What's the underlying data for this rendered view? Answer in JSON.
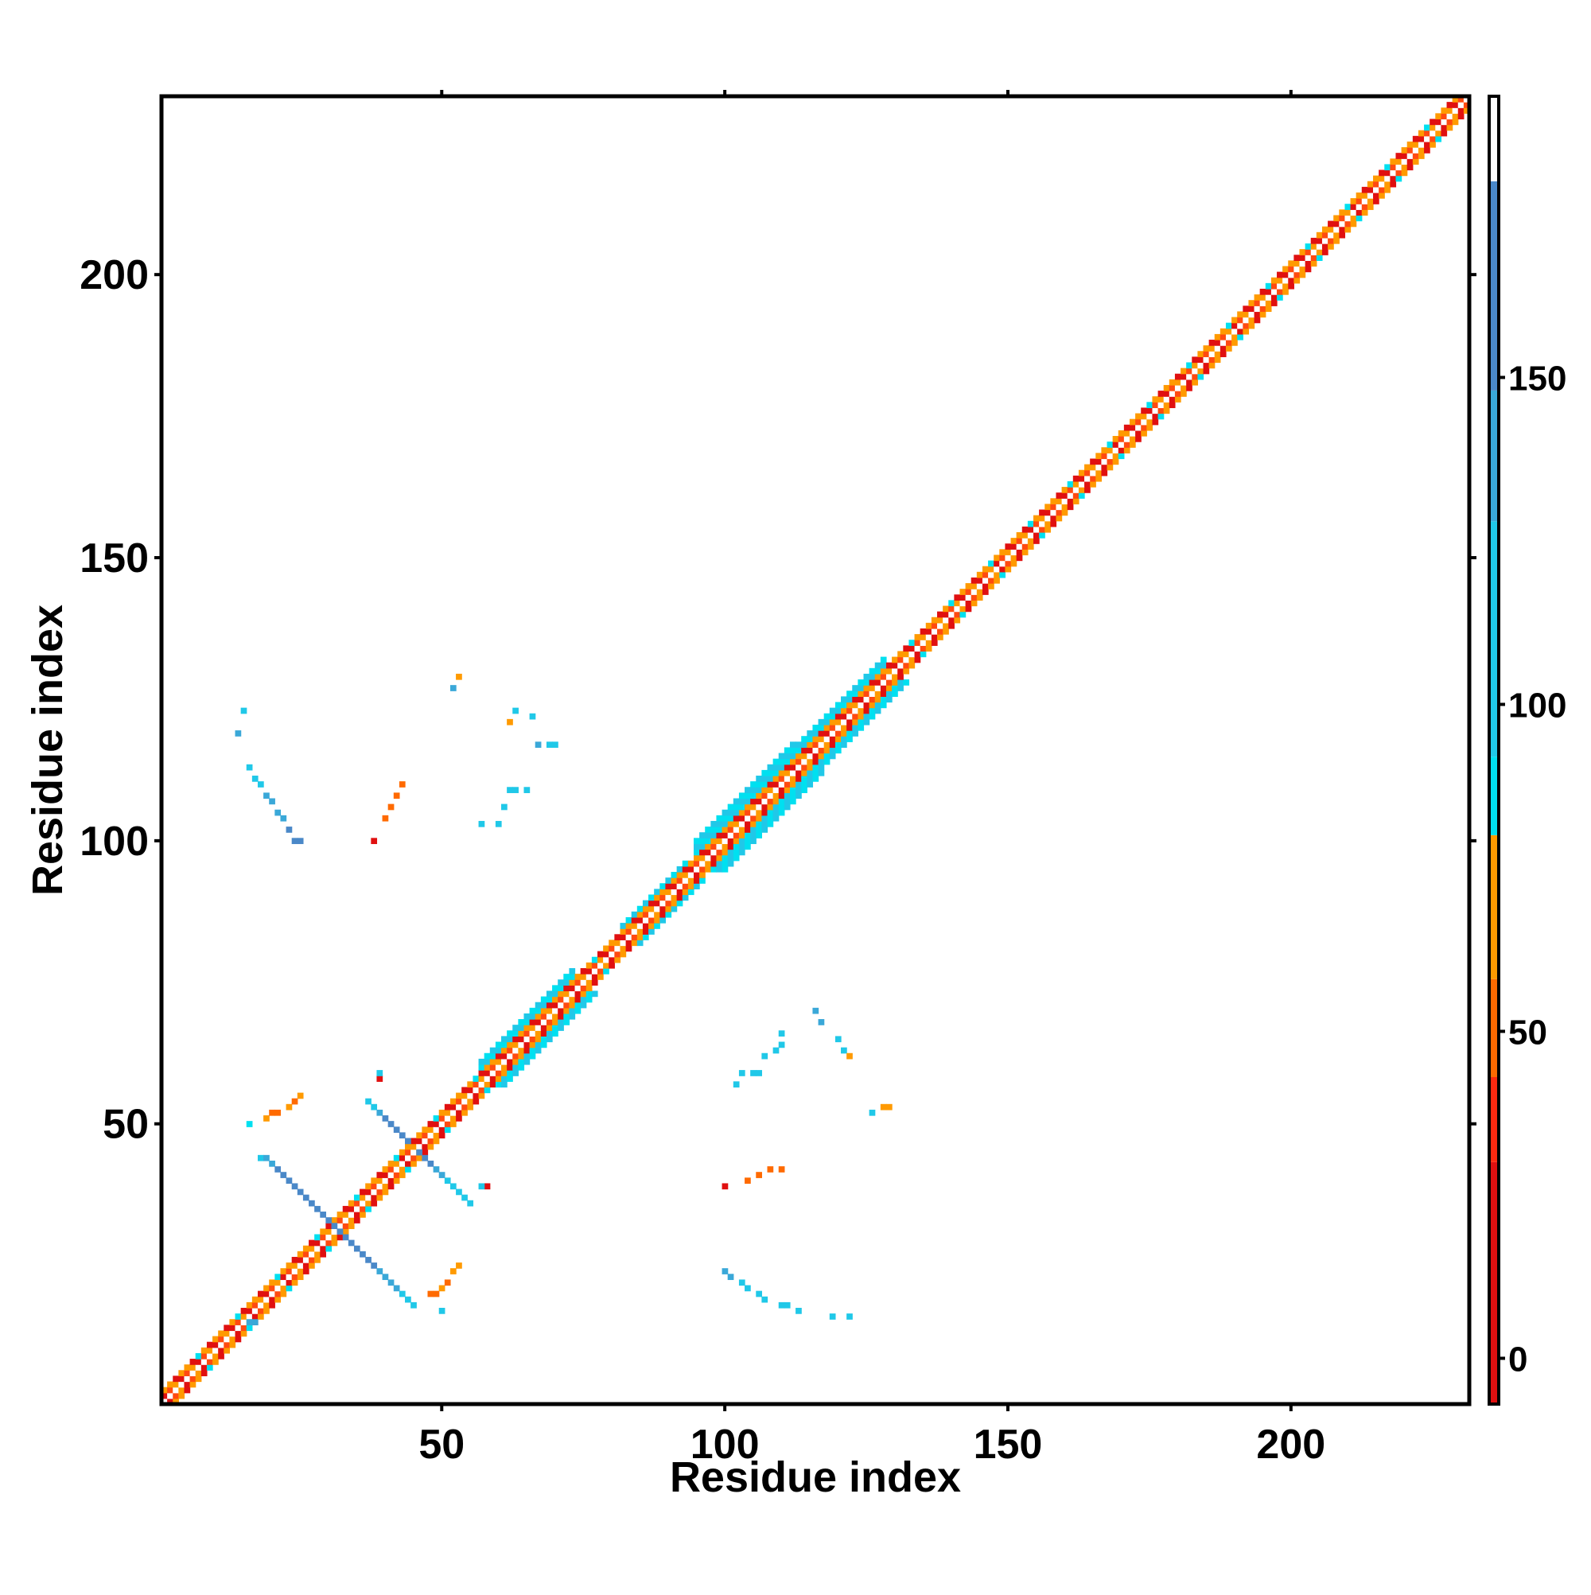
{
  "chart_data": {
    "type": "heatmap",
    "title": "",
    "xlabel": "Residue index",
    "ylabel": "Residue index",
    "xlim": [
      1,
      231
    ],
    "ylim": [
      1,
      231
    ],
    "x_ticks": [
      50,
      100,
      150,
      200
    ],
    "y_ticks": [
      50,
      100,
      150,
      200
    ],
    "colorbar": {
      "ticks": [
        0,
        50,
        100,
        150
      ],
      "range": [
        -7,
        193
      ],
      "bands": [
        {
          "from": -7,
          "to": 30,
          "color": "#e01010"
        },
        {
          "from": 30,
          "to": 43,
          "color": "#ff2a10"
        },
        {
          "from": 43,
          "to": 58,
          "color": "#ff6a00"
        },
        {
          "from": 58,
          "to": 80,
          "color": "#ff9a00"
        },
        {
          "from": 80,
          "to": 92,
          "color": "#00e0f0"
        },
        {
          "from": 92,
          "to": 128,
          "color": "#20c8e8"
        },
        {
          "from": 128,
          "to": 148,
          "color": "#3aa8d8"
        },
        {
          "from": 148,
          "to": 180,
          "color": "#4a88c8"
        },
        {
          "from": 180,
          "to": 193,
          "color": "#ffffff"
        }
      ]
    },
    "palette": {
      "red": "#e01010",
      "orange_red": "#ff4a10",
      "orange": "#ff9a00",
      "cyan": "#00e0f0",
      "sky": "#20c8e8",
      "steel": "#4a88c8",
      "white": "#ffffff"
    },
    "diagonal": {
      "from": 1,
      "to": 231,
      "band_width": 4
    },
    "diagonal_wide_segments": [
      {
        "from": 57,
        "to": 73,
        "half_width": 4
      },
      {
        "from": 82,
        "to": 93,
        "half_width": 3
      },
      {
        "from": 95,
        "to": 112,
        "half_width": 5
      },
      {
        "from": 113,
        "to": 128,
        "half_width": 4
      },
      {
        "from": 133,
        "to": 147,
        "half_width": 2
      },
      {
        "from": 152,
        "to": 162,
        "half_width": 2
      },
      {
        "from": 173,
        "to": 183,
        "half_width": 2
      },
      {
        "from": 185,
        "to": 193,
        "half_width": 2
      },
      {
        "from": 197,
        "to": 205,
        "half_width": 2
      },
      {
        "from": 208,
        "to": 215,
        "half_width": 2
      }
    ],
    "cells": [
      {
        "x": 16,
        "y": 15,
        "v": 130
      },
      {
        "x": 17,
        "y": 15,
        "v": 130
      },
      {
        "x": 18,
        "y": 44,
        "v": 95
      },
      {
        "x": 19,
        "y": 44,
        "v": 130
      },
      {
        "x": 20,
        "y": 43,
        "v": 140
      },
      {
        "x": 21,
        "y": 42,
        "v": 150
      },
      {
        "x": 22,
        "y": 41,
        "v": 150
      },
      {
        "x": 23,
        "y": 40,
        "v": 150
      },
      {
        "x": 24,
        "y": 39,
        "v": 155
      },
      {
        "x": 25,
        "y": 38,
        "v": 155
      },
      {
        "x": 26,
        "y": 37,
        "v": 155
      },
      {
        "x": 27,
        "y": 36,
        "v": 155
      },
      {
        "x": 28,
        "y": 35,
        "v": 155
      },
      {
        "x": 29,
        "y": 34,
        "v": 155
      },
      {
        "x": 30,
        "y": 33,
        "v": 150
      },
      {
        "x": 31,
        "y": 32,
        "v": 150
      },
      {
        "x": 33,
        "y": 30,
        "v": 150
      },
      {
        "x": 34,
        "y": 29,
        "v": 150
      },
      {
        "x": 35,
        "y": 28,
        "v": 150
      },
      {
        "x": 36,
        "y": 27,
        "v": 150
      },
      {
        "x": 37,
        "y": 26,
        "v": 150
      },
      {
        "x": 38,
        "y": 25,
        "v": 150
      },
      {
        "x": 39,
        "y": 24,
        "v": 140
      },
      {
        "x": 40,
        "y": 23,
        "v": 140
      },
      {
        "x": 41,
        "y": 22,
        "v": 130
      },
      {
        "x": 42,
        "y": 21,
        "v": 130
      },
      {
        "x": 43,
        "y": 20,
        "v": 120
      },
      {
        "x": 44,
        "y": 19,
        "v": 100
      },
      {
        "x": 45,
        "y": 18,
        "v": 95
      },
      {
        "x": 32,
        "y": 31,
        "v": 150
      },
      {
        "x": 37,
        "y": 54,
        "v": 95
      },
      {
        "x": 38,
        "y": 53,
        "v": 120
      },
      {
        "x": 39,
        "y": 52,
        "v": 130
      },
      {
        "x": 40,
        "y": 51,
        "v": 150
      },
      {
        "x": 41,
        "y": 50,
        "v": 155
      },
      {
        "x": 42,
        "y": 49,
        "v": 155
      },
      {
        "x": 43,
        "y": 48,
        "v": 155
      },
      {
        "x": 44,
        "y": 47,
        "v": 150
      },
      {
        "x": 46,
        "y": 45,
        "v": 150
      },
      {
        "x": 47,
        "y": 44,
        "v": 155
      },
      {
        "x": 48,
        "y": 43,
        "v": 150
      },
      {
        "x": 49,
        "y": 42,
        "v": 140
      },
      {
        "x": 50,
        "y": 41,
        "v": 130
      },
      {
        "x": 51,
        "y": 40,
        "v": 120
      },
      {
        "x": 52,
        "y": 39,
        "v": 110
      },
      {
        "x": 53,
        "y": 38,
        "v": 100
      },
      {
        "x": 54,
        "y": 37,
        "v": 95
      },
      {
        "x": 55,
        "y": 36,
        "v": 95
      },
      {
        "x": 58,
        "y": 39,
        "v": 10
      },
      {
        "x": 57,
        "y": 39,
        "v": 95
      },
      {
        "x": 39,
        "y": 58,
        "v": 10
      },
      {
        "x": 39,
        "y": 59,
        "v": 95
      },
      {
        "x": 16,
        "y": 50,
        "v": 90
      },
      {
        "x": 19,
        "y": 51,
        "v": 60
      },
      {
        "x": 20,
        "y": 52,
        "v": 45
      },
      {
        "x": 21,
        "y": 52,
        "v": 45
      },
      {
        "x": 23,
        "y": 53,
        "v": 60
      },
      {
        "x": 24,
        "y": 54,
        "v": 45
      },
      {
        "x": 25,
        "y": 55,
        "v": 70
      },
      {
        "x": 48,
        "y": 20,
        "v": 45
      },
      {
        "x": 49,
        "y": 20,
        "v": 45
      },
      {
        "x": 50,
        "y": 21,
        "v": 60
      },
      {
        "x": 51,
        "y": 22,
        "v": 45
      },
      {
        "x": 52,
        "y": 24,
        "v": 70
      },
      {
        "x": 53,
        "y": 25,
        "v": 60
      },
      {
        "x": 50,
        "y": 17,
        "v": 95
      },
      {
        "x": 15,
        "y": 123,
        "v": 95
      },
      {
        "x": 14,
        "y": 119,
        "v": 140
      },
      {
        "x": 16,
        "y": 113,
        "v": 120
      },
      {
        "x": 17,
        "y": 111,
        "v": 120
      },
      {
        "x": 18,
        "y": 110,
        "v": 125
      },
      {
        "x": 19,
        "y": 108,
        "v": 130
      },
      {
        "x": 20,
        "y": 107,
        "v": 140
      },
      {
        "x": 21,
        "y": 105,
        "v": 140
      },
      {
        "x": 22,
        "y": 104,
        "v": 145
      },
      {
        "x": 23,
        "y": 102,
        "v": 150
      },
      {
        "x": 24,
        "y": 100,
        "v": 155
      },
      {
        "x": 25,
        "y": 100,
        "v": 155
      },
      {
        "x": 38,
        "y": 100,
        "v": 10
      },
      {
        "x": 40,
        "y": 104,
        "v": 45
      },
      {
        "x": 41,
        "y": 106,
        "v": 45
      },
      {
        "x": 42,
        "y": 108,
        "v": 45
      },
      {
        "x": 43,
        "y": 110,
        "v": 45
      },
      {
        "x": 52,
        "y": 127,
        "v": 130
      },
      {
        "x": 53,
        "y": 129,
        "v": 60
      },
      {
        "x": 57,
        "y": 103,
        "v": 110
      },
      {
        "x": 60,
        "y": 103,
        "v": 110
      },
      {
        "x": 61,
        "y": 106,
        "v": 120
      },
      {
        "x": 62,
        "y": 109,
        "v": 95
      },
      {
        "x": 63,
        "y": 109,
        "v": 95
      },
      {
        "x": 65,
        "y": 109,
        "v": 95
      },
      {
        "x": 63,
        "y": 123,
        "v": 125
      },
      {
        "x": 66,
        "y": 122,
        "v": 95
      },
      {
        "x": 67,
        "y": 117,
        "v": 140
      },
      {
        "x": 69,
        "y": 117,
        "v": 110
      },
      {
        "x": 70,
        "y": 117,
        "v": 110
      },
      {
        "x": 62,
        "y": 121,
        "v": 60
      },
      {
        "x": 100,
        "y": 39,
        "v": 10
      },
      {
        "x": 104,
        "y": 40,
        "v": 45
      },
      {
        "x": 106,
        "y": 41,
        "v": 45
      },
      {
        "x": 108,
        "y": 42,
        "v": 45
      },
      {
        "x": 110,
        "y": 42,
        "v": 45
      },
      {
        "x": 100,
        "y": 24,
        "v": 130
      },
      {
        "x": 101,
        "y": 23,
        "v": 130
      },
      {
        "x": 103,
        "y": 22,
        "v": 125
      },
      {
        "x": 104,
        "y": 21,
        "v": 125
      },
      {
        "x": 106,
        "y": 20,
        "v": 120
      },
      {
        "x": 107,
        "y": 19,
        "v": 120
      },
      {
        "x": 110,
        "y": 18,
        "v": 110
      },
      {
        "x": 111,
        "y": 18,
        "v": 110
      },
      {
        "x": 113,
        "y": 17,
        "v": 100
      },
      {
        "x": 119,
        "y": 16,
        "v": 110
      },
      {
        "x": 122,
        "y": 16,
        "v": 110
      },
      {
        "x": 102,
        "y": 57,
        "v": 95
      },
      {
        "x": 103,
        "y": 59,
        "v": 95
      },
      {
        "x": 105,
        "y": 59,
        "v": 95
      },
      {
        "x": 106,
        "y": 59,
        "v": 95
      },
      {
        "x": 107,
        "y": 62,
        "v": 95
      },
      {
        "x": 109,
        "y": 63,
        "v": 110
      },
      {
        "x": 110,
        "y": 64,
        "v": 120
      },
      {
        "x": 110,
        "y": 66,
        "v": 120
      },
      {
        "x": 116,
        "y": 70,
        "v": 130
      },
      {
        "x": 117,
        "y": 68,
        "v": 140
      },
      {
        "x": 120,
        "y": 65,
        "v": 95
      },
      {
        "x": 121,
        "y": 63,
        "v": 95
      },
      {
        "x": 122,
        "y": 62,
        "v": 60
      },
      {
        "x": 126,
        "y": 52,
        "v": 95
      },
      {
        "x": 128,
        "y": 53,
        "v": 60
      },
      {
        "x": 129,
        "y": 53,
        "v": 60
      }
    ]
  }
}
